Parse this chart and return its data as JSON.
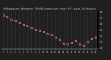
{
  "title": "Milwaukee Weather THSW Index per Hour (F) (Last 24 Hours)",
  "x_values": [
    0,
    1,
    2,
    3,
    4,
    5,
    6,
    7,
    8,
    9,
    10,
    11,
    12,
    13,
    14,
    15,
    16,
    17,
    18,
    19,
    20,
    21,
    22,
    23
  ],
  "y_values": [
    75,
    72,
    68,
    65,
    62,
    59,
    57,
    54,
    51,
    49,
    47,
    44,
    42,
    38,
    34,
    28,
    26,
    29,
    32,
    27,
    24,
    30,
    36,
    38
  ],
  "ylim": [
    18,
    82
  ],
  "bg_color": "#202020",
  "plot_bg_color": "#202020",
  "line_color": "#ff0000",
  "marker_color": "#000000",
  "marker_edge_color": "#cccccc",
  "grid_color": "#666666",
  "tick_color": "#cccccc",
  "title_color": "#cccccc",
  "line_style": "--",
  "marker_style": "s",
  "marker_size": 1.8,
  "line_width": 0.7,
  "spine_color": "#000000"
}
